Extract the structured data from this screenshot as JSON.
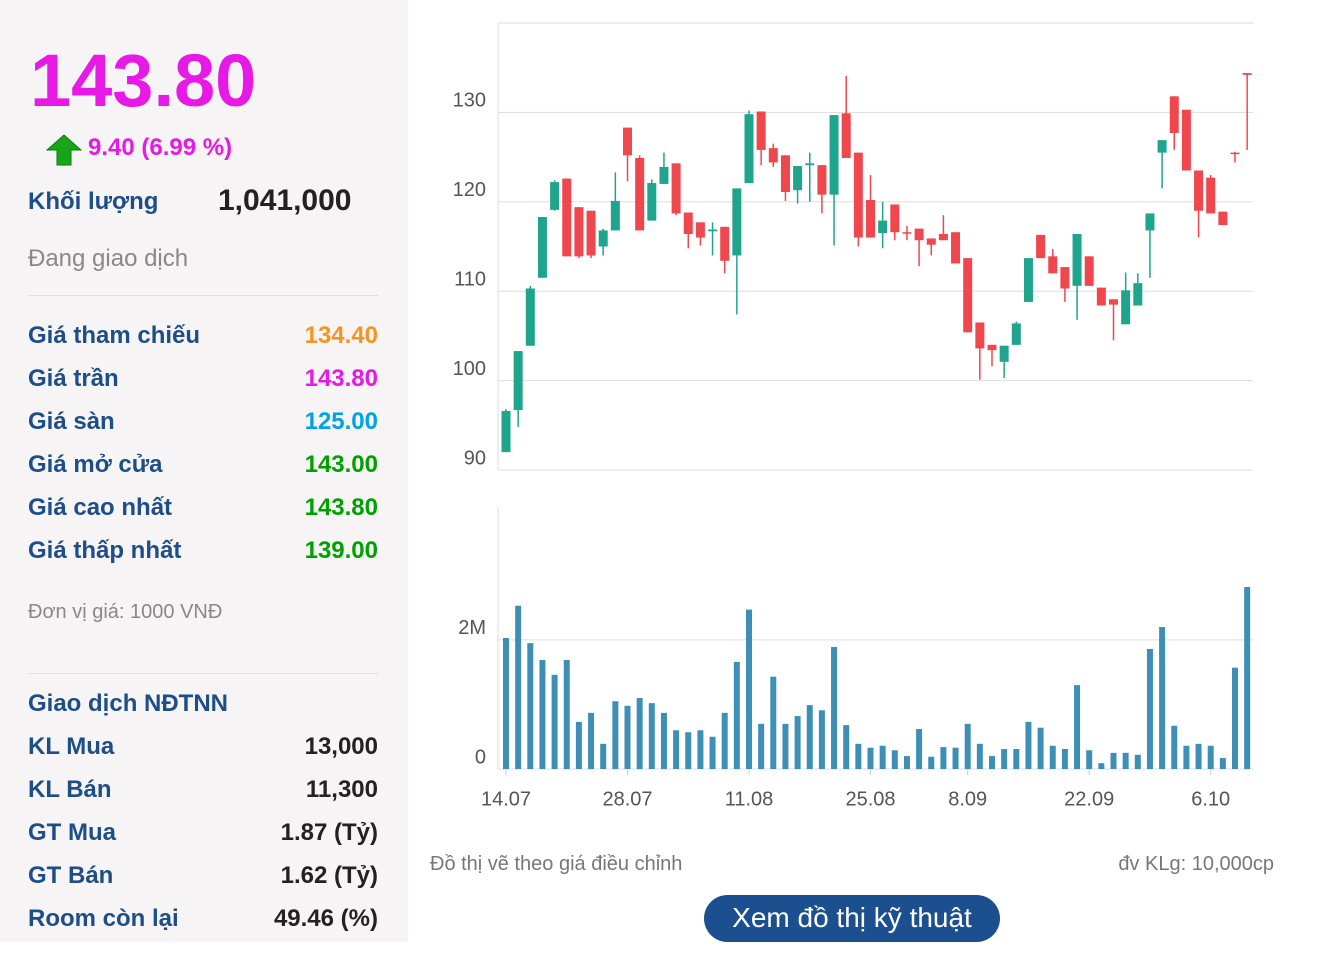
{
  "panel": {
    "price": "143.80",
    "change": "9.40 (6.99 %)",
    "price_color": "#e619e6",
    "volume_label": "Khối lượng",
    "volume": "1,041,000",
    "status": "Đang giao dịch",
    "prices": [
      {
        "label": "Giá tham chiếu",
        "value": "134.40",
        "color": "#f7941d"
      },
      {
        "label": "Giá trần",
        "value": "143.80",
        "color": "#e619e6"
      },
      {
        "label": "Giá sàn",
        "value": "125.00",
        "color": "#00a2e8"
      },
      {
        "label": "Giá mở cửa",
        "value": "143.00",
        "color": "#00a000"
      },
      {
        "label": "Giá cao nhất",
        "value": "143.80",
        "color": "#00a000"
      },
      {
        "label": "Giá thấp nhất",
        "value": "139.00",
        "color": "#00a000"
      }
    ],
    "unit": "Đơn vị giá: 1000 VNĐ",
    "foreign_title": "Giao dịch NĐTNN",
    "foreign": [
      {
        "label": "KL Mua",
        "value": "13,000"
      },
      {
        "label": "KL Bán",
        "value": "11,300"
      },
      {
        "label": "GT Mua",
        "value": "1.87 (Tỷ)"
      },
      {
        "label": "GT Bán",
        "value": "1.62 (Tỷ)"
      },
      {
        "label": "Room còn lại",
        "value": "49.46 (%)"
      }
    ]
  },
  "chart_data": {
    "type": "candlestick",
    "up_color": "#1fa58e",
    "down_color": "#f0474f",
    "grid": true,
    "categories": [
      "14.07",
      null,
      null,
      null,
      null,
      null,
      null,
      null,
      null,
      null,
      "28.07",
      null,
      null,
      null,
      null,
      null,
      null,
      null,
      null,
      null,
      "11.08",
      null,
      null,
      null,
      null,
      null,
      null,
      null,
      null,
      null,
      "25.08",
      null,
      null,
      null,
      null,
      null,
      null,
      null,
      "8.09",
      null,
      null,
      null,
      null,
      null,
      null,
      null,
      null,
      null,
      "22.09",
      null,
      null,
      null,
      null,
      null,
      null,
      null,
      null,
      null,
      "6.10",
      null,
      null,
      null
    ],
    "open": [
      92,
      96.7,
      103.9,
      111.5,
      119.1,
      122.6,
      119.4,
      119.0,
      115.0,
      116.8,
      128.3,
      124.9,
      117.9,
      122.0,
      124.3,
      118.8,
      117.7,
      116.7,
      117.2,
      114.0,
      122.1,
      130.1,
      126.0,
      125.2,
      121.3,
      124.1,
      124.1,
      120.8,
      129.9,
      125.5,
      120.2,
      116.5,
      119.7,
      116.6,
      117.0,
      115.9,
      116.4,
      116.6,
      113.7,
      106.5,
      104.0,
      102.1,
      104.0,
      108.8,
      116.3,
      113.9,
      112.7,
      110.6,
      113.9,
      110.4,
      109.1,
      106.3,
      108.4,
      116.8,
      125.5,
      131.8,
      130.3,
      123.5,
      122.7,
      118.9,
      125.5,
      134.4
    ],
    "high": [
      96.8,
      103.3,
      110.6,
      118.3,
      122.4,
      122.6,
      119.4,
      119.0,
      117.0,
      123.3,
      128.3,
      125.2,
      122.5,
      125.5,
      124.3,
      118.8,
      117.7,
      117.7,
      117.2,
      121.5,
      130.2,
      130.1,
      126.5,
      125.2,
      124.0,
      125.5,
      124.1,
      129.7,
      134.1,
      125.5,
      123.0,
      120.0,
      119.7,
      117.3,
      117.0,
      115.9,
      118.5,
      116.6,
      113.7,
      106.5,
      104.0,
      103.9,
      106.6,
      113.7,
      116.3,
      114.7,
      112.7,
      116.4,
      113.9,
      110.4,
      109.1,
      112.1,
      112.0,
      118.7,
      126.9,
      131.8,
      130.3,
      123.5,
      123.0,
      118.9,
      125.6,
      134.4
    ],
    "low": [
      92.0,
      94.8,
      103.9,
      111.5,
      119.0,
      113.9,
      113.7,
      113.7,
      114.0,
      116.8,
      122.3,
      116.8,
      117.9,
      122.0,
      118.5,
      114.8,
      115.1,
      114.0,
      112.0,
      107.4,
      122.1,
      124.1,
      123.9,
      120.1,
      119.8,
      120.0,
      118.7,
      115.1,
      124.9,
      115.0,
      116.0,
      114.8,
      115.7,
      115.7,
      112.8,
      114.0,
      115.7,
      113.1,
      105.4,
      100.1,
      101.6,
      100.3,
      104.0,
      108.8,
      113.7,
      112.0,
      108.8,
      106.8,
      110.6,
      108.4,
      104.5,
      106.3,
      108.4,
      111.5,
      121.5,
      125.8,
      123.5,
      116.0,
      118.7,
      117.4,
      124.4,
      125.8
    ],
    "close": [
      96.6,
      103.3,
      110.3,
      118.3,
      122.2,
      113.9,
      113.9,
      114.0,
      116.8,
      120.1,
      125.2,
      116.8,
      122.1,
      123.9,
      118.7,
      116.4,
      116.0,
      116.9,
      113.4,
      121.5,
      129.8,
      125.8,
      124.4,
      121.1,
      124.0,
      124.3,
      120.8,
      129.7,
      124.9,
      116.0,
      116.0,
      117.9,
      116.6,
      116.5,
      115.7,
      115.2,
      115.7,
      113.1,
      105.4,
      103.6,
      103.4,
      103.9,
      106.4,
      113.7,
      113.7,
      112.0,
      110.3,
      116.4,
      110.6,
      108.4,
      108.5,
      110.1,
      110.9,
      118.7,
      126.9,
      127.7,
      123.5,
      119.0,
      118.7,
      117.4,
      125.4,
      134.2
    ],
    "ylim": [
      90,
      140
    ],
    "yticks": [
      90,
      100,
      110,
      120,
      130
    ],
    "volume": {
      "color": "#3d8fb5",
      "values": [
        2030000,
        2530000,
        1950000,
        1690000,
        1460000,
        1690000,
        730000,
        870000,
        390000,
        1050000,
        980000,
        1100000,
        1020000,
        870000,
        600000,
        570000,
        600000,
        500000,
        870000,
        1660000,
        2470000,
        700000,
        1430000,
        700000,
        820000,
        990000,
        910000,
        1890000,
        680000,
        390000,
        330000,
        360000,
        290000,
        200000,
        620000,
        190000,
        340000,
        330000,
        700000,
        390000,
        200000,
        310000,
        310000,
        730000,
        640000,
        360000,
        310000,
        1300000,
        290000,
        90000,
        250000,
        250000,
        220000,
        1860000,
        2200000,
        670000,
        360000,
        390000,
        360000,
        170000,
        1570000,
        2820000
      ],
      "ylim": [
        0,
        4060000
      ],
      "yticks": [
        0,
        {
          "value": 2000000,
          "label": "2M"
        }
      ]
    },
    "note": "Đồ thị vẽ theo giá điều chỉnh",
    "volume_unit": "đv KLg: 10,000cp"
  },
  "button": "Xem đồ thị kỹ thuật"
}
